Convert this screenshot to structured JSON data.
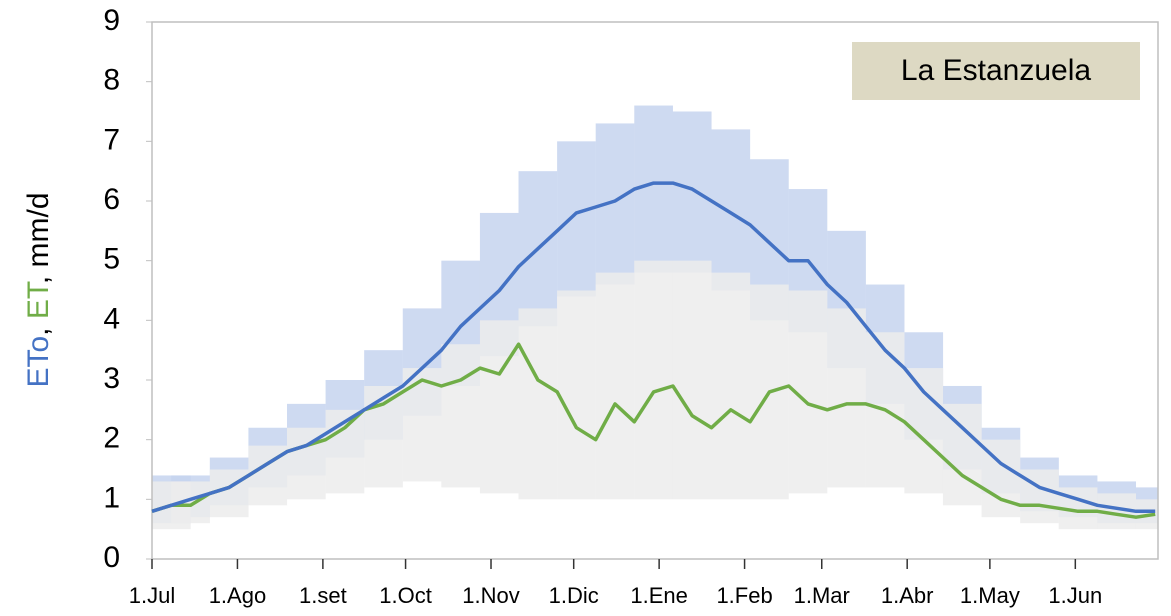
{
  "chart_data": {
    "type": "line",
    "annotation": "La Estanzuela",
    "label_separator": ", ",
    "ylabel": ", mm/d",
    "x": [
      0,
      7,
      14,
      21,
      28,
      35,
      42,
      49,
      56,
      63,
      70,
      77,
      84,
      91,
      98,
      105,
      112,
      119,
      126,
      133,
      140,
      147,
      154,
      161,
      168,
      175,
      182,
      189,
      196,
      203,
      210,
      217,
      224,
      231,
      238,
      245,
      252,
      259,
      266,
      273,
      280,
      287,
      294,
      301,
      308,
      315,
      322,
      329,
      336,
      343,
      350,
      357,
      364
    ],
    "series": [
      {
        "name": "ETo",
        "color": "#4472c4",
        "values": [
          0.8,
          0.9,
          1.0,
          1.1,
          1.2,
          1.4,
          1.6,
          1.8,
          1.9,
          2.1,
          2.3,
          2.5,
          2.7,
          2.9,
          3.2,
          3.5,
          3.9,
          4.2,
          4.5,
          4.9,
          5.2,
          5.5,
          5.8,
          5.9,
          6.0,
          6.2,
          6.3,
          6.3,
          6.2,
          6.0,
          5.8,
          5.6,
          5.3,
          5.0,
          5.0,
          4.6,
          4.3,
          3.9,
          3.5,
          3.2,
          2.8,
          2.5,
          2.2,
          1.9,
          1.6,
          1.4,
          1.2,
          1.1,
          1.0,
          0.9,
          0.85,
          0.8,
          0.8
        ]
      },
      {
        "name": "ET",
        "color": "#70ad47",
        "values": [
          0.8,
          0.9,
          0.9,
          1.1,
          1.2,
          1.4,
          1.6,
          1.8,
          1.9,
          2.0,
          2.2,
          2.5,
          2.6,
          2.8,
          3.0,
          2.9,
          3.0,
          3.2,
          3.1,
          3.6,
          3.0,
          2.8,
          2.2,
          2.0,
          2.6,
          2.3,
          2.8,
          2.9,
          2.4,
          2.2,
          2.5,
          2.3,
          2.8,
          2.9,
          2.6,
          2.5,
          2.6,
          2.6,
          2.5,
          2.3,
          2.0,
          1.7,
          1.4,
          1.2,
          1.0,
          0.9,
          0.9,
          0.85,
          0.8,
          0.8,
          0.75,
          0.7,
          0.75
        ]
      }
    ],
    "bands": [
      {
        "color": "#c5d3ee",
        "x": [
          0,
          14,
          28,
          42,
          56,
          70,
          84,
          98,
          112,
          126,
          140,
          154,
          168,
          182,
          196,
          210,
          224,
          238,
          252,
          266,
          280,
          294,
          308,
          322,
          336,
          350,
          364
        ],
        "low": [
          0.6,
          0.7,
          0.9,
          1.2,
          1.4,
          1.7,
          2.0,
          2.4,
          2.9,
          3.4,
          3.9,
          4.4,
          4.6,
          4.8,
          4.8,
          4.5,
          4.0,
          3.8,
          3.2,
          2.6,
          2.0,
          1.5,
          1.1,
          0.8,
          0.7,
          0.6,
          0.6
        ],
        "high": [
          1.4,
          1.4,
          1.7,
          2.2,
          2.6,
          3.0,
          3.5,
          4.2,
          5.0,
          5.8,
          6.5,
          7.0,
          7.3,
          7.6,
          7.5,
          7.2,
          6.7,
          6.2,
          5.5,
          4.6,
          3.8,
          2.9,
          2.2,
          1.7,
          1.4,
          1.3,
          1.2
        ]
      },
      {
        "color": "#ececec",
        "x": [
          0,
          14,
          28,
          42,
          56,
          70,
          84,
          98,
          112,
          126,
          140,
          154,
          168,
          182,
          196,
          210,
          224,
          238,
          252,
          266,
          280,
          294,
          308,
          322,
          336,
          350,
          364
        ],
        "low": [
          0.5,
          0.6,
          0.7,
          0.9,
          1.0,
          1.1,
          1.2,
          1.3,
          1.2,
          1.1,
          1.0,
          1.0,
          1.0,
          1.0,
          1.0,
          1.0,
          1.0,
          1.1,
          1.2,
          1.2,
          1.1,
          0.9,
          0.7,
          0.6,
          0.5,
          0.5,
          0.5
        ],
        "high": [
          1.3,
          1.3,
          1.5,
          1.9,
          2.2,
          2.5,
          2.9,
          3.2,
          3.6,
          4.0,
          4.2,
          4.5,
          4.8,
          5.0,
          5.0,
          4.8,
          4.6,
          4.5,
          4.2,
          3.8,
          3.2,
          2.6,
          2.0,
          1.5,
          1.2,
          1.1,
          1.0
        ]
      }
    ],
    "xlim": [
      0,
      365
    ],
    "xticks": [
      {
        "value": 0,
        "label": "1.Jul"
      },
      {
        "value": 31,
        "label": "1.Ago"
      },
      {
        "value": 62,
        "label": "1.set"
      },
      {
        "value": 92,
        "label": "1.Oct"
      },
      {
        "value": 123,
        "label": "1.Nov"
      },
      {
        "value": 153,
        "label": "1.Dic"
      },
      {
        "value": 184,
        "label": "1.Ene"
      },
      {
        "value": 215,
        "label": "1.Feb"
      },
      {
        "value": 243,
        "label": "1.Mar"
      },
      {
        "value": 274,
        "label": "1.Abr"
      },
      {
        "value": 304,
        "label": "1.May"
      },
      {
        "value": 335,
        "label": "1.Jun"
      }
    ],
    "ylim": [
      0,
      9
    ],
    "yticks": [
      0,
      1,
      2,
      3,
      4,
      5,
      6,
      7,
      8,
      9
    ]
  }
}
